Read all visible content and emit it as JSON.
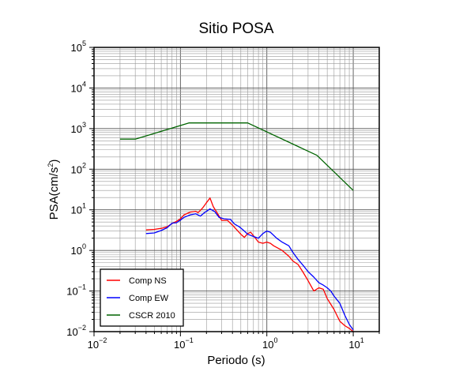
{
  "chart_data": {
    "type": "line",
    "title": "Sitio POSA",
    "xlabel": "Periodo (s)",
    "ylabel_base": "PSA(cm/s",
    "ylabel_sup": "2",
    "ylabel_close": ")",
    "x_scale": "log",
    "y_scale": "log",
    "xlim": [
      0.01,
      20
    ],
    "ylim": [
      0.01,
      100000
    ],
    "grid": true,
    "legend_position": "bottom-left",
    "x_ticks": [
      {
        "value": 0.01,
        "base": "10",
        "exp": "−2"
      },
      {
        "value": 0.1,
        "base": "10",
        "exp": "−1"
      },
      {
        "value": 1,
        "base": "10",
        "exp": "0"
      },
      {
        "value": 10,
        "base": "10",
        "exp": "1"
      }
    ],
    "y_ticks": [
      {
        "value": 0.01,
        "base": "10",
        "exp": "−2"
      },
      {
        "value": 0.1,
        "base": "10",
        "exp": "−1"
      },
      {
        "value": 1,
        "base": "10",
        "exp": "0"
      },
      {
        "value": 10,
        "base": "10",
        "exp": "1"
      },
      {
        "value": 100,
        "base": "10",
        "exp": "2"
      },
      {
        "value": 1000,
        "base": "10",
        "exp": "3"
      },
      {
        "value": 10000,
        "base": "10",
        "exp": "4"
      },
      {
        "value": 100000,
        "base": "10",
        "exp": "5"
      }
    ],
    "series": [
      {
        "name": "Comp NS",
        "color": "#ff0000",
        "points": [
          [
            0.04,
            3.2
          ],
          [
            0.05,
            3.3
          ],
          [
            0.06,
            3.5
          ],
          [
            0.07,
            3.8
          ],
          [
            0.08,
            4.6
          ],
          [
            0.09,
            5.2
          ],
          [
            0.1,
            6.0
          ],
          [
            0.11,
            7.5
          ],
          [
            0.13,
            8.8
          ],
          [
            0.15,
            9.2
          ],
          [
            0.16,
            8.5
          ],
          [
            0.18,
            11.0
          ],
          [
            0.2,
            15.0
          ],
          [
            0.22,
            19.5
          ],
          [
            0.24,
            12.0
          ],
          [
            0.27,
            8.0
          ],
          [
            0.3,
            5.5
          ],
          [
            0.35,
            5.5
          ],
          [
            0.4,
            4.2
          ],
          [
            0.45,
            3.2
          ],
          [
            0.5,
            2.5
          ],
          [
            0.55,
            2.1
          ],
          [
            0.6,
            2.6
          ],
          [
            0.65,
            2.8
          ],
          [
            0.7,
            2.3
          ],
          [
            0.8,
            1.6
          ],
          [
            0.9,
            1.5
          ],
          [
            1.0,
            1.6
          ],
          [
            1.1,
            1.5
          ],
          [
            1.2,
            1.3
          ],
          [
            1.5,
            1.0
          ],
          [
            1.8,
            0.72
          ],
          [
            2.0,
            0.55
          ],
          [
            2.3,
            0.45
          ],
          [
            2.6,
            0.3
          ],
          [
            3.0,
            0.18
          ],
          [
            3.5,
            0.1
          ],
          [
            4.0,
            0.12
          ],
          [
            4.5,
            0.11
          ],
          [
            5.0,
            0.065
          ],
          [
            6.0,
            0.035
          ],
          [
            7.0,
            0.018
          ],
          [
            8.0,
            0.014
          ],
          [
            9.0,
            0.012
          ],
          [
            10.0,
            0.01
          ]
        ]
      },
      {
        "name": "Comp EW",
        "color": "#0000ff",
        "points": [
          [
            0.04,
            2.6
          ],
          [
            0.05,
            2.7
          ],
          [
            0.06,
            3.1
          ],
          [
            0.07,
            3.6
          ],
          [
            0.08,
            4.7
          ],
          [
            0.09,
            4.8
          ],
          [
            0.1,
            5.6
          ],
          [
            0.11,
            6.5
          ],
          [
            0.13,
            7.5
          ],
          [
            0.15,
            8.0
          ],
          [
            0.17,
            7.0
          ],
          [
            0.19,
            8.5
          ],
          [
            0.22,
            10.5
          ],
          [
            0.25,
            9.0
          ],
          [
            0.28,
            6.5
          ],
          [
            0.32,
            6.0
          ],
          [
            0.38,
            5.8
          ],
          [
            0.42,
            4.5
          ],
          [
            0.48,
            3.8
          ],
          [
            0.55,
            3.0
          ],
          [
            0.6,
            2.5
          ],
          [
            0.7,
            2.2
          ],
          [
            0.8,
            2.0
          ],
          [
            0.9,
            2.6
          ],
          [
            1.0,
            3.0
          ],
          [
            1.1,
            2.8
          ],
          [
            1.3,
            2.0
          ],
          [
            1.5,
            1.6
          ],
          [
            1.8,
            1.3
          ],
          [
            2.0,
            0.9
          ],
          [
            2.3,
            0.6
          ],
          [
            2.7,
            0.4
          ],
          [
            3.0,
            0.3
          ],
          [
            3.5,
            0.22
          ],
          [
            4.0,
            0.16
          ],
          [
            4.5,
            0.14
          ],
          [
            5.0,
            0.12
          ],
          [
            5.5,
            0.1
          ],
          [
            6.0,
            0.075
          ],
          [
            7.0,
            0.05
          ],
          [
            8.0,
            0.025
          ],
          [
            9.0,
            0.015
          ],
          [
            10.0,
            0.011
          ]
        ]
      },
      {
        "name": "CSCR 2010",
        "color": "#006400",
        "points": [
          [
            0.02,
            550
          ],
          [
            0.03,
            550
          ],
          [
            0.125,
            1380
          ],
          [
            0.6,
            1380
          ],
          [
            3.8,
            220
          ],
          [
            10.0,
            30
          ]
        ]
      }
    ]
  }
}
